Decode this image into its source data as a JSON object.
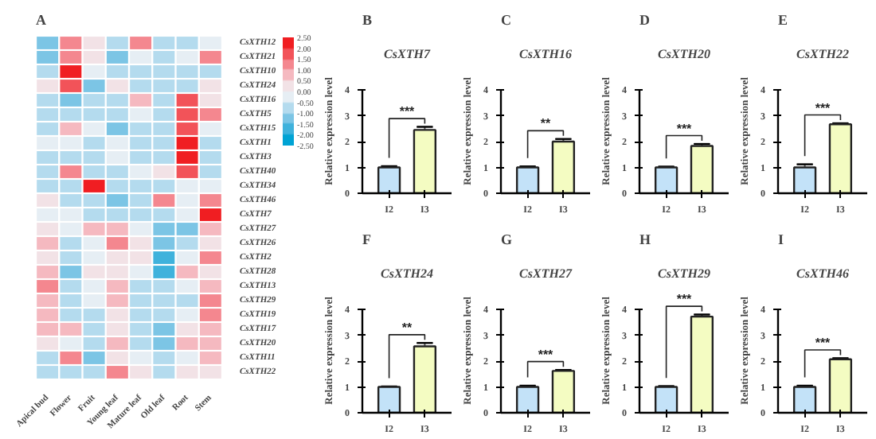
{
  "chart_data": [
    {
      "type": "heatmap",
      "annotations": [
        "A"
      ],
      "categories": [
        "Apical bud",
        "Flower",
        "Fruit",
        "Young leaf",
        "Mature leaf",
        "Old leaf",
        "Root",
        "Stem"
      ],
      "y_categories": [
        "CsXTH12",
        "CsXTH21",
        "CsXTH10",
        "CsXTH24",
        "CsXTH16",
        "CsXTH5",
        "CsXTH15",
        "CsXTH1",
        "CsXTH3",
        "CsXTH40",
        "CsXTH34",
        "CsXTH46",
        "CsXTH7",
        "CsXTH27",
        "CsXTH26",
        "CsXTH2",
        "CsXTH28",
        "CsXTH13",
        "CsXTH29",
        "CsXTH19",
        "CsXTH17",
        "CsXTH20",
        "CsXTH11",
        "CsXTH22"
      ],
      "cells": [
        [
          -1.2,
          1.2,
          0.0,
          -0.7,
          1.2,
          -0.6,
          -0.9,
          -0.5
        ],
        [
          -1.1,
          1.3,
          0.3,
          -1.3,
          -0.5,
          -0.6,
          -0.3,
          1.0
        ],
        [
          -0.6,
          2.3,
          -0.3,
          -0.6,
          -0.7,
          -0.9,
          -0.6,
          -0.6
        ],
        [
          0.3,
          1.8,
          -1.2,
          0.2,
          -0.6,
          -0.9,
          -1.0,
          0.3
        ],
        [
          -0.6,
          -1.3,
          -0.6,
          -0.8,
          0.8,
          -0.6,
          1.8,
          0.4
        ],
        [
          -0.9,
          -0.6,
          -1.0,
          -0.6,
          -0.3,
          -0.6,
          1.5,
          1.3
        ],
        [
          -0.6,
          0.5,
          -0.3,
          -1.2,
          -0.9,
          -0.6,
          1.8,
          -0.2
        ],
        [
          -0.5,
          -0.3,
          -0.9,
          -0.5,
          -0.8,
          -0.6,
          2.3,
          -0.6
        ],
        [
          -0.6,
          -0.6,
          -0.8,
          -0.3,
          -0.6,
          -0.6,
          2.4,
          -0.6
        ],
        [
          -1.0,
          1.1,
          -0.6,
          -0.6,
          -0.5,
          0.4,
          1.6,
          -1.0
        ],
        [
          -0.6,
          -0.6,
          2.4,
          -0.6,
          -0.6,
          -0.6,
          -0.5,
          -0.3
        ],
        [
          0.3,
          -0.6,
          -0.6,
          -1.3,
          -0.6,
          1.3,
          -0.5,
          1.3
        ],
        [
          -0.5,
          -0.5,
          -0.6,
          -0.6,
          -0.6,
          -0.6,
          -0.4,
          2.5
        ],
        [
          0.3,
          -0.3,
          0.8,
          0.6,
          -0.3,
          -1.3,
          -1.2,
          0.6
        ],
        [
          0.8,
          -0.8,
          -0.5,
          1.0,
          0.3,
          -1.5,
          -0.8,
          0.4
        ],
        [
          0.1,
          -0.8,
          -0.3,
          0.3,
          0.3,
          -2.0,
          -0.3,
          1.1
        ],
        [
          0.6,
          -1.1,
          0.3,
          0.3,
          -0.3,
          -1.6,
          0.6,
          0.4
        ],
        [
          1.3,
          -1.0,
          -0.2,
          0.5,
          -0.8,
          -1.0,
          -0.5,
          0.9
        ],
        [
          0.8,
          -1.0,
          -0.2,
          0.8,
          -0.8,
          -0.8,
          -0.6,
          1.0
        ],
        [
          0.8,
          -0.8,
          -0.9,
          0.3,
          -0.6,
          -1.0,
          -0.3,
          1.4
        ],
        [
          0.6,
          0.5,
          -1.0,
          0.3,
          -0.7,
          -1.3,
          0.4,
          0.5
        ],
        [
          0.3,
          -0.2,
          -1.0,
          0.6,
          -0.8,
          -1.3,
          0.5,
          0.8
        ],
        [
          -0.6,
          1.1,
          -1.1,
          0.3,
          -0.5,
          -1.0,
          -0.3,
          0.7
        ],
        [
          -0.8,
          -0.8,
          -0.8,
          1.4,
          0.4,
          -1.0,
          0.2,
          0.3
        ]
      ],
      "clim": [
        -2.5,
        2.5
      ],
      "cticks": [
        {
          "value": 2.5,
          "label": "2.50"
        },
        {
          "value": 2,
          "label": "2.00"
        },
        {
          "value": 1.5,
          "label": "1.50"
        },
        {
          "value": 1,
          "label": "1.00"
        },
        {
          "value": 0.5,
          "label": "0.50"
        },
        {
          "value": 0,
          "label": "0.00"
        },
        {
          "value": -0.5,
          "label": "-0.50"
        },
        {
          "value": -1,
          "label": "-1.00"
        },
        {
          "value": -1.5,
          "label": "-1.50"
        },
        {
          "value": -2,
          "label": "-2.00"
        },
        {
          "value": -2.5,
          "label": "-2.50"
        }
      ]
    },
    {
      "type": "bar",
      "title": "CsXTH7",
      "annotations": [
        "B",
        "***"
      ],
      "categories": [
        "I2",
        "I3"
      ],
      "values": [
        1.0,
        2.45
      ],
      "errors": [
        0.05,
        0.12
      ],
      "colors": [
        "#c3e2f8",
        "#f4fcc2"
      ],
      "ylabel": "Relative expression level",
      "ylim": [
        0,
        4
      ],
      "yticks": [
        0,
        1,
        2,
        3,
        4
      ]
    },
    {
      "type": "bar",
      "title": "CsXTH16",
      "annotations": [
        "C",
        "**"
      ],
      "categories": [
        "I2",
        "I3"
      ],
      "values": [
        1.0,
        2.0
      ],
      "errors": [
        0.04,
        0.1
      ],
      "colors": [
        "#c3e2f8",
        "#f4fcc2"
      ],
      "ylabel": "Relative expression level",
      "ylim": [
        0,
        4
      ],
      "yticks": [
        0,
        1,
        2,
        3,
        4
      ]
    },
    {
      "type": "bar",
      "title": "CsXTH20",
      "annotations": [
        "D",
        "***"
      ],
      "categories": [
        "I2",
        "I3"
      ],
      "values": [
        1.0,
        1.83
      ],
      "errors": [
        0.03,
        0.08
      ],
      "colors": [
        "#c3e2f8",
        "#f4fcc2"
      ],
      "ylabel": "Relative expression level",
      "ylim": [
        0,
        4
      ],
      "yticks": [
        0,
        1,
        2,
        3,
        4
      ]
    },
    {
      "type": "bar",
      "title": "CsXTH22",
      "annotations": [
        "E",
        "***"
      ],
      "categories": [
        "I2",
        "I3"
      ],
      "values": [
        1.0,
        2.67
      ],
      "errors": [
        0.12,
        0.04
      ],
      "colors": [
        "#c3e2f8",
        "#f4fcc2"
      ],
      "ylabel": "Relative expression level",
      "ylim": [
        0,
        4
      ],
      "yticks": [
        0,
        1,
        2,
        3,
        4
      ]
    },
    {
      "type": "bar",
      "title": "CsXTH24",
      "annotations": [
        "F",
        "**"
      ],
      "categories": [
        "I2",
        "I3"
      ],
      "values": [
        1.0,
        2.57
      ],
      "errors": [
        0.02,
        0.13
      ],
      "colors": [
        "#c3e2f8",
        "#f4fcc2"
      ],
      "ylabel": "Relative expression level",
      "ylim": [
        0,
        4
      ],
      "yticks": [
        0,
        1,
        2,
        3,
        4
      ]
    },
    {
      "type": "bar",
      "title": "CsXTH27",
      "annotations": [
        "G",
        "***"
      ],
      "categories": [
        "I2",
        "I3"
      ],
      "values": [
        1.0,
        1.62
      ],
      "errors": [
        0.05,
        0.04
      ],
      "colors": [
        "#c3e2f8",
        "#f4fcc2"
      ],
      "ylabel": "Relative expression level",
      "ylim": [
        0,
        4
      ],
      "yticks": [
        0,
        1,
        2,
        3,
        4
      ]
    },
    {
      "type": "bar",
      "title": "CsXTH29",
      "annotations": [
        "H",
        "***"
      ],
      "categories": [
        "I2",
        "I3"
      ],
      "values": [
        1.0,
        3.72
      ],
      "errors": [
        0.03,
        0.08
      ],
      "colors": [
        "#c3e2f8",
        "#f4fcc2"
      ],
      "ylabel": "Relative expression level",
      "ylim": [
        0,
        4
      ],
      "yticks": [
        0,
        1,
        2,
        3,
        4
      ]
    },
    {
      "type": "bar",
      "title": "CsXTH46",
      "annotations": [
        "I",
        "***"
      ],
      "categories": [
        "I2",
        "I3"
      ],
      "values": [
        1.0,
        2.07
      ],
      "errors": [
        0.05,
        0.04
      ],
      "colors": [
        "#c3e2f8",
        "#f4fcc2"
      ],
      "ylabel": "Relative expression level",
      "ylim": [
        0,
        4
      ],
      "yticks": [
        0,
        1,
        2,
        3,
        4
      ]
    }
  ]
}
